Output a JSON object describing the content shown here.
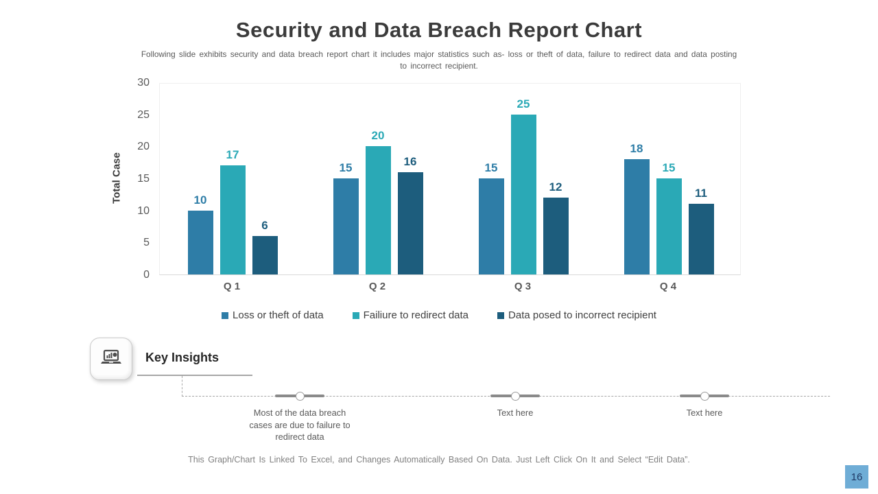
{
  "slide": {
    "title": "Security and Data Breach Report Chart",
    "subtitle": "Following slide exhibits security and data breach report chart it includes major statistics such as- loss or theft of data, failure to redirect data and data posting to incorrect recipient.",
    "footer_note": "This Graph/Chart Is Linked To Excel, and Changes Automatically Based On Data. Just Left Click On It and Select “Edit Data”.",
    "page_number": "16"
  },
  "chart_data": {
    "type": "bar",
    "title": "",
    "xlabel": "",
    "ylabel": "Total Case",
    "ylim": [
      0,
      30
    ],
    "yticks": [
      0,
      5,
      10,
      15,
      20,
      25,
      30
    ],
    "grid": false,
    "legend_position": "bottom",
    "categories": [
      "Q 1",
      "Q 2",
      "Q 3",
      "Q 4"
    ],
    "series": [
      {
        "name": "Loss or theft of data",
        "color": "#2e7da7",
        "values": [
          10,
          15,
          15,
          18
        ]
      },
      {
        "name": "Failiure to redirect data",
        "color": "#2aa9b6",
        "values": [
          17,
          20,
          25,
          15
        ]
      },
      {
        "name": "Data posed to incorrect recipient",
        "color": "#1d5d7d",
        "values": [
          6,
          16,
          12,
          11
        ]
      }
    ]
  },
  "insights": {
    "heading": "Key Insights",
    "icon": "laptop-chart-icon",
    "items": [
      {
        "label": "Most of the data breach cases are due to failure to redirect data"
      },
      {
        "label": "Text here"
      },
      {
        "label": "Text here"
      }
    ]
  },
  "colors": {
    "badge_bg": "#6fadd6",
    "badge_text": "#1f3864",
    "axis_text": "#595959",
    "baseline": "#d9d9d9"
  }
}
